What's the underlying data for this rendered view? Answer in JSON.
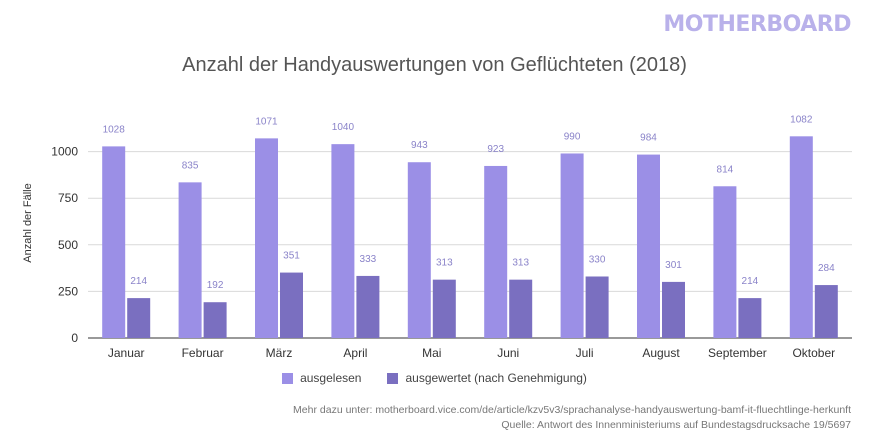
{
  "branding": {
    "logo_text": "MOTHERBOARD"
  },
  "colors": {
    "series1": "#9b8fe6",
    "series2": "#7a6fc0",
    "axis_text": "#333333",
    "grid": "#d9d9d9",
    "label_text": "#8a83c9"
  },
  "footer": {
    "line1": "Mehr dazu unter: motherboard.vice.com/de/article/kzv5v3/sprachanalyse-handyauswertung-bamf-it-fluechtlinge-herkunft",
    "line2": "Quelle: Antwort des Innenministeriums auf Bundestagsdrucksache 19/5697"
  },
  "chart_data": {
    "type": "bar",
    "title": "Anzahl der Handyauswertungen von Geflüchteten (2018)",
    "xlabel": "",
    "ylabel": "Anzahl der Fälle",
    "ylim": [
      0,
      1250
    ],
    "yticks": [
      0,
      250,
      500,
      750,
      1000
    ],
    "grid": true,
    "legend_position": "bottom",
    "categories": [
      "Januar",
      "Februar",
      "März",
      "April",
      "Mai",
      "Juni",
      "Juli",
      "August",
      "September",
      "Oktober"
    ],
    "series": [
      {
        "name": "ausgelesen",
        "values": [
          1028,
          835,
          1071,
          1040,
          943,
          923,
          990,
          984,
          814,
          1082
        ]
      },
      {
        "name": "ausgewertet (nach Genehmigung)",
        "values": [
          214,
          192,
          351,
          333,
          313,
          313,
          330,
          301,
          214,
          284
        ]
      }
    ]
  }
}
